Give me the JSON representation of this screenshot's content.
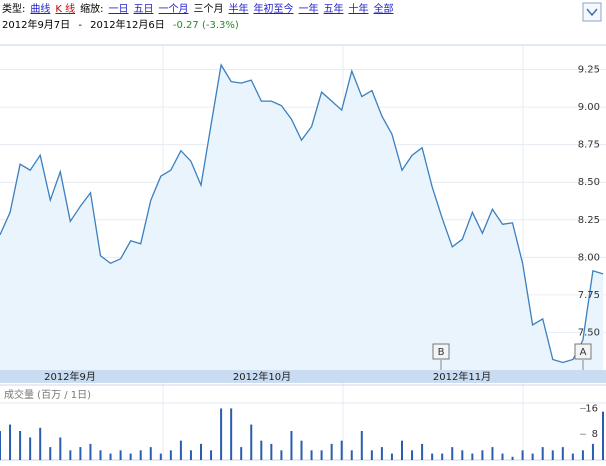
{
  "toolbar": {
    "type_label": "类型:",
    "chart_types": [
      "曲线",
      "K 线"
    ],
    "zoom_label": "缩放:",
    "zoom_options": [
      "一日",
      "五日",
      "一个月",
      "三个月",
      "半年",
      "年初至今",
      "一年",
      "五年",
      "十年",
      "全部"
    ]
  },
  "range": {
    "start": "2012年9月7日",
    "separator": "-",
    "end": "2012年12月6日",
    "change": "-0.27 (-3.3%)"
  },
  "markers": [
    "B",
    "A"
  ],
  "chart_data": [
    {
      "type": "line",
      "color": "#3b7fc0",
      "x_labels": [
        "2012年9月",
        "2012年10月",
        "2012年11月"
      ],
      "values": [
        8.15,
        8.3,
        8.62,
        8.58,
        8.68,
        8.38,
        8.57,
        8.24,
        8.34,
        8.43,
        8.01,
        7.96,
        7.99,
        8.11,
        8.09,
        8.38,
        8.54,
        8.58,
        8.71,
        8.64,
        8.48,
        8.88,
        9.28,
        9.17,
        9.16,
        9.18,
        9.04,
        9.04,
        9.01,
        8.92,
        8.78,
        8.87,
        9.1,
        9.04,
        8.98,
        9.24,
        9.07,
        9.11,
        8.94,
        8.82,
        8.58,
        8.68,
        8.73,
        8.47,
        8.26,
        8.07,
        8.12,
        8.3,
        8.16,
        8.32,
        8.22,
        8.23,
        7.96,
        7.55,
        7.59,
        7.32,
        7.3,
        7.32,
        7.45,
        7.91,
        7.89
      ],
      "ylim": [
        7.25,
        9.4
      ],
      "yticks": [
        {
          "value": 7.5,
          "label": "7.50"
        },
        {
          "value": 7.75,
          "label": "7.75"
        },
        {
          "value": 8,
          "label": "8.00"
        },
        {
          "value": 8.25,
          "label": "8.25"
        },
        {
          "value": 8.5,
          "label": "8.50"
        },
        {
          "value": 8.75,
          "label": "8.75"
        },
        {
          "value": 9,
          "label": "9.00"
        },
        {
          "value": 9.25,
          "label": "9.25"
        }
      ]
    },
    {
      "type": "bar",
      "title": "成交量 (百万 / 1日)",
      "color": "#2a5db0",
      "values": [
        9,
        11,
        9,
        7,
        10,
        4,
        7,
        3,
        4,
        5,
        3,
        2,
        3,
        2,
        3,
        4,
        2,
        3,
        6,
        3,
        5,
        3,
        16,
        16,
        4,
        11,
        6,
        5,
        3,
        9,
        6,
        3,
        3,
        5,
        6,
        3,
        9,
        3,
        4,
        2,
        6,
        3,
        5,
        2,
        2,
        4,
        3,
        2,
        3,
        4,
        2,
        1,
        3,
        2,
        4,
        3,
        4,
        2,
        3,
        5,
        15
      ],
      "ylim": [
        0,
        18
      ],
      "yticks": [
        8,
        16
      ]
    }
  ]
}
